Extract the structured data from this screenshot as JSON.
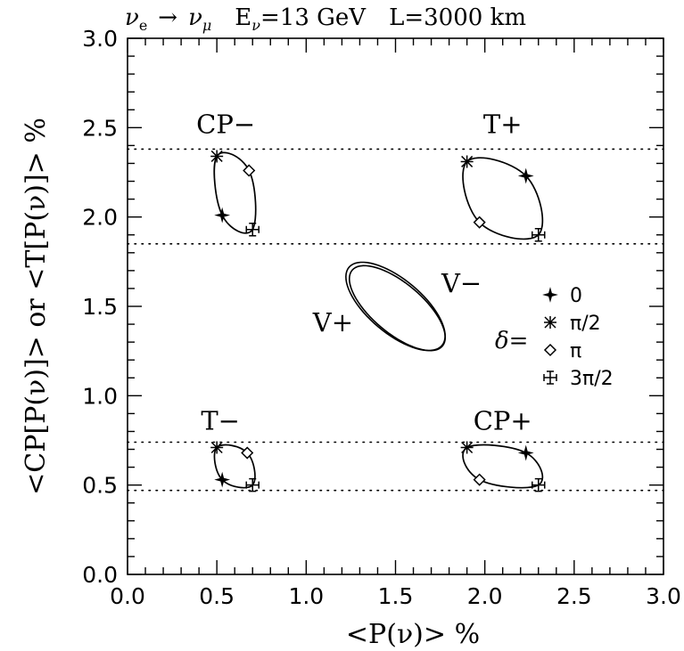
{
  "chart_data": {
    "type": "scatter",
    "title": "νe → νμ   Eν=13 GeV   L=3000 km",
    "title_parts": {
      "channel_from": "ν",
      "channel_from_sub": "e",
      "arrow": "→",
      "channel_to": "ν",
      "channel_to_sub": "μ",
      "energy_prefix": "E",
      "energy_sub": "ν",
      "energy_value": "=13 GeV",
      "baseline": "L=3000 km"
    },
    "xlabel": "<P(ν)> %",
    "ylabel": "<CP[P(ν)]> or <T[P(ν)]> %",
    "xlim": [
      0,
      3
    ],
    "ylim": [
      0,
      3
    ],
    "x_ticks": [
      "0.0",
      "0.5",
      "1.0",
      "1.5",
      "2.0",
      "2.5",
      "3.0"
    ],
    "y_ticks": [
      "0.0",
      "0.5",
      "1.0",
      "1.5",
      "2.0",
      "2.5",
      "3.0"
    ],
    "dotted_reference_lines_y": [
      2.38,
      1.85,
      0.74,
      0.47
    ],
    "legend": {
      "placement": "right-center",
      "title": "δ=",
      "entries": [
        {
          "marker": "cross",
          "label": "0"
        },
        {
          "marker": "asterisk",
          "label": "π/2"
        },
        {
          "marker": "diamond",
          "label": "π"
        },
        {
          "marker": "crossbox",
          "label": "3π/2"
        }
      ]
    },
    "ellipses": [
      {
        "label": "CP−",
        "label_at": [
          0.55,
          2.47
        ],
        "curve": [
          [
            0.5,
            2.34
          ],
          [
            0.68,
            2.26
          ],
          [
            0.7,
            1.93
          ],
          [
            0.53,
            2.01
          ]
        ],
        "points": [
          {
            "delta": "0",
            "x": 0.53,
            "y": 2.01
          },
          {
            "delta": "π/2",
            "x": 0.5,
            "y": 2.34
          },
          {
            "delta": "π",
            "x": 0.68,
            "y": 2.26
          },
          {
            "delta": "3π/2",
            "x": 0.7,
            "y": 1.93
          }
        ]
      },
      {
        "label": "T+",
        "label_at": [
          2.1,
          2.47
        ],
        "curve": [
          [
            1.9,
            2.31
          ],
          [
            2.23,
            2.23
          ],
          [
            2.3,
            1.9
          ],
          [
            1.97,
            1.97
          ]
        ],
        "points": [
          {
            "delta": "0",
            "x": 2.23,
            "y": 2.23
          },
          {
            "delta": "π/2",
            "x": 1.9,
            "y": 2.31
          },
          {
            "delta": "π",
            "x": 1.97,
            "y": 1.97
          },
          {
            "delta": "3π/2",
            "x": 2.3,
            "y": 1.9
          }
        ]
      },
      {
        "label": "T−",
        "label_at": [
          0.52,
          0.81
        ],
        "curve": [
          [
            0.5,
            0.71
          ],
          [
            0.67,
            0.68
          ],
          [
            0.7,
            0.5
          ],
          [
            0.53,
            0.53
          ]
        ],
        "points": [
          {
            "delta": "0",
            "x": 0.53,
            "y": 0.53
          },
          {
            "delta": "π/2",
            "x": 0.5,
            "y": 0.71
          },
          {
            "delta": "π",
            "x": 0.67,
            "y": 0.68
          },
          {
            "delta": "3π/2",
            "x": 0.7,
            "y": 0.5
          }
        ]
      },
      {
        "label": "CP+",
        "label_at": [
          2.1,
          0.81
        ],
        "curve": [
          [
            1.9,
            0.71
          ],
          [
            2.23,
            0.68
          ],
          [
            2.3,
            0.5
          ],
          [
            1.97,
            0.53
          ]
        ],
        "points": [
          {
            "delta": "0",
            "x": 2.23,
            "y": 0.68
          },
          {
            "delta": "π/2",
            "x": 1.9,
            "y": 0.71
          },
          {
            "delta": "π",
            "x": 1.97,
            "y": 0.53
          },
          {
            "delta": "3π/2",
            "x": 2.3,
            "y": 0.5
          }
        ]
      }
    ],
    "center_ellipses": {
      "labels": [
        "V+",
        "V−"
      ],
      "label_at": {
        "V+": [
          1.15,
          1.36
        ],
        "V−": [
          1.87,
          1.58
        ]
      },
      "curves": [
        {
          "cx": 1.5,
          "cy": 1.5,
          "semi_major": 0.34,
          "semi_minor": 0.15,
          "angle_deg": 40
        },
        {
          "cx": 1.51,
          "cy": 1.49,
          "semi_major": 0.33,
          "semi_minor": 0.14,
          "angle_deg": 40
        }
      ]
    }
  }
}
